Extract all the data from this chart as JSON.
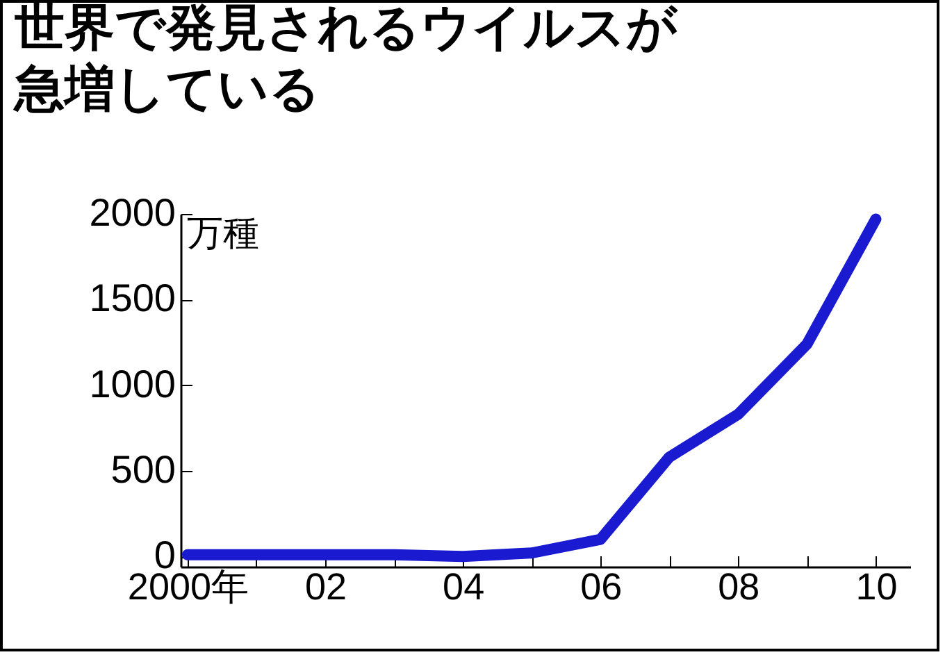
{
  "chart_data": {
    "type": "line",
    "title": "世界で発見されるウイルスが急増している",
    "ylabel": "万種",
    "x": [
      2000,
      2001,
      2002,
      2003,
      2004,
      2005,
      2006,
      2007,
      2008,
      2009,
      2010
    ],
    "series": [
      {
        "color": "#1a1ad0",
        "values": [
          10,
          10,
          10,
          10,
          0,
          20,
          100,
          580,
          830,
          1240,
          1970
        ]
      }
    ],
    "xlim": [
      1999.9,
      2010.5
    ],
    "xticks": [
      {
        "value": 2000,
        "label": "2000年"
      },
      {
        "value": 2001,
        "label": null
      },
      {
        "value": 2002,
        "label": "02"
      },
      {
        "value": 2003,
        "label": null
      },
      {
        "value": 2004,
        "label": "04"
      },
      {
        "value": 2005,
        "label": null
      },
      {
        "value": 2006,
        "label": "06"
      },
      {
        "value": 2007,
        "label": null
      },
      {
        "value": 2008,
        "label": "08"
      },
      {
        "value": 2009,
        "label": null
      },
      {
        "value": 2010,
        "label": "10"
      }
    ],
    "ylim": [
      -60,
      2000
    ],
    "yticks": [
      0,
      500,
      1000,
      1500,
      2000
    ],
    "grid": false,
    "marker": "none",
    "line_style": "solid"
  }
}
